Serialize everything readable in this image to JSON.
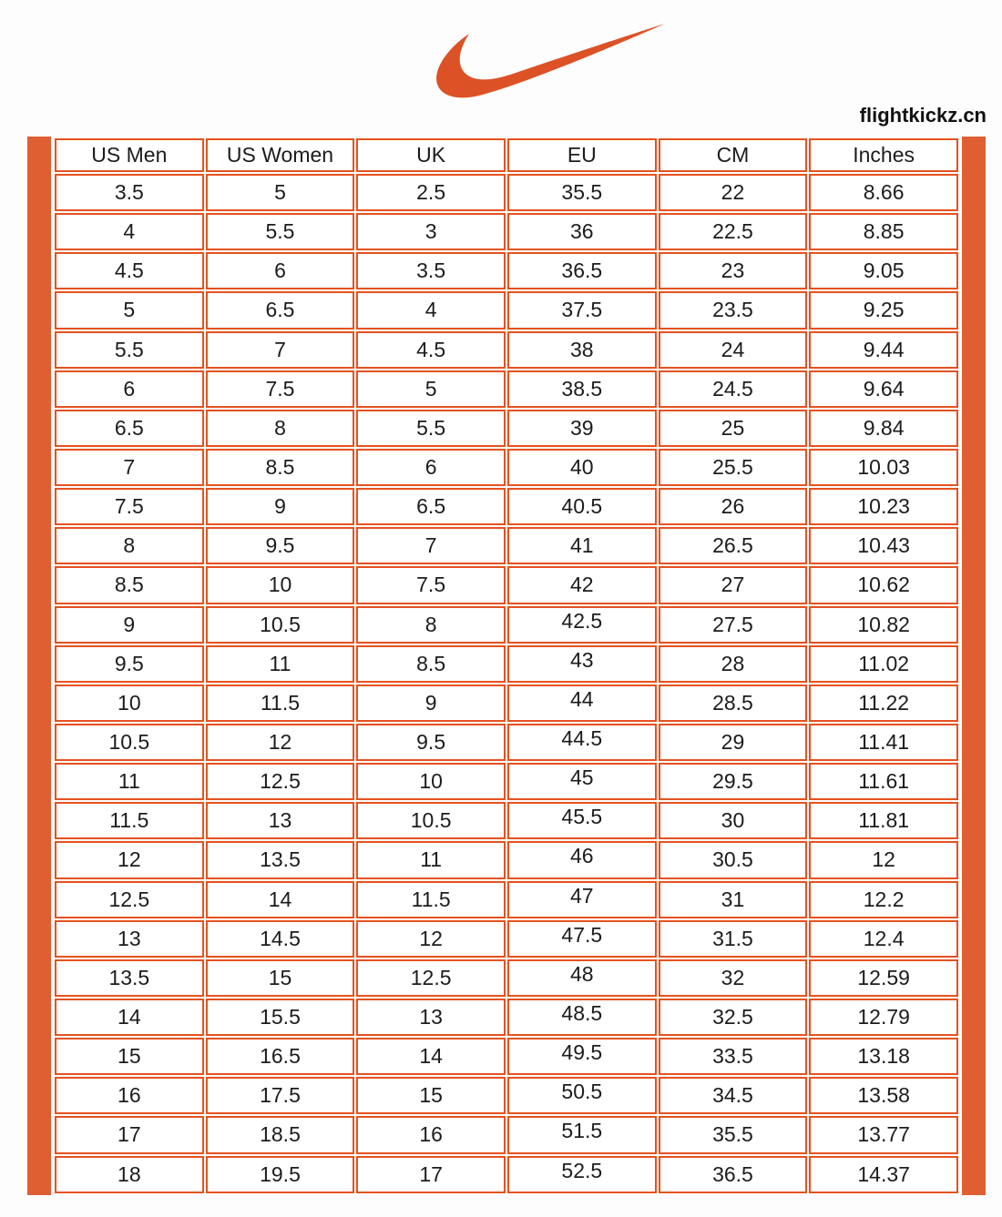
{
  "brand": {
    "logo_icon": "nike-swoosh-icon",
    "swoosh_color": "#DC5226",
    "watermark": "flightkickz.cn"
  },
  "colors": {
    "stripe": "#DF5F33",
    "table_border": "#E5521F",
    "text": "#1C1C1C",
    "background": "#FDFDFD"
  },
  "chart_data": {
    "type": "table",
    "columns": [
      "US Men",
      "US Women",
      "UK",
      "EU",
      "CM",
      "Inches"
    ],
    "rows": [
      [
        "3.5",
        "5",
        "2.5",
        "35.5",
        "22",
        "8.66"
      ],
      [
        "4",
        "5.5",
        "3",
        "36",
        "22.5",
        "8.85"
      ],
      [
        "4.5",
        "6",
        "3.5",
        "36.5",
        "23",
        "9.05"
      ],
      [
        "5",
        "6.5",
        "4",
        "37.5",
        "23.5",
        "9.25"
      ],
      [
        "5.5",
        "7",
        "4.5",
        "38",
        "24",
        "9.44"
      ],
      [
        "6",
        "7.5",
        "5",
        "38.5",
        "24.5",
        "9.64"
      ],
      [
        "6.5",
        "8",
        "5.5",
        "39",
        "25",
        "9.84"
      ],
      [
        "7",
        "8.5",
        "6",
        "40",
        "25.5",
        "10.03"
      ],
      [
        "7.5",
        "9",
        "6.5",
        "40.5",
        "26",
        "10.23"
      ],
      [
        "8",
        "9.5",
        "7",
        "41",
        "26.5",
        "10.43"
      ],
      [
        "8.5",
        "10",
        "7.5",
        "42",
        "27",
        "10.62"
      ],
      [
        "9",
        "10.5",
        "8",
        "42.5",
        "27.5",
        "10.82"
      ],
      [
        "9.5",
        "11",
        "8.5",
        "43",
        "28",
        "11.02"
      ],
      [
        "10",
        "11.5",
        "9",
        "44",
        "28.5",
        "11.22"
      ],
      [
        "10.5",
        "12",
        "9.5",
        "44.5",
        "29",
        "11.41"
      ],
      [
        "11",
        "12.5",
        "10",
        "45",
        "29.5",
        "11.61"
      ],
      [
        "11.5",
        "13",
        "10.5",
        "45.5",
        "30",
        "11.81"
      ],
      [
        "12",
        "13.5",
        "11",
        "46",
        "30.5",
        "12"
      ],
      [
        "12.5",
        "14",
        "11.5",
        "47",
        "31",
        "12.2"
      ],
      [
        "13",
        "14.5",
        "12",
        "47.5",
        "31.5",
        "12.4"
      ],
      [
        "13.5",
        "15",
        "12.5",
        "48",
        "32",
        "12.59"
      ],
      [
        "14",
        "15.5",
        "13",
        "48.5",
        "32.5",
        "12.79"
      ],
      [
        "15",
        "16.5",
        "14",
        "49.5",
        "33.5",
        "13.18"
      ],
      [
        "16",
        "17.5",
        "15",
        "50.5",
        "34.5",
        "13.58"
      ],
      [
        "17",
        "18.5",
        "16",
        "51.5",
        "35.5",
        "13.77"
      ],
      [
        "18",
        "19.5",
        "17",
        "52.5",
        "36.5",
        "14.37"
      ]
    ]
  }
}
